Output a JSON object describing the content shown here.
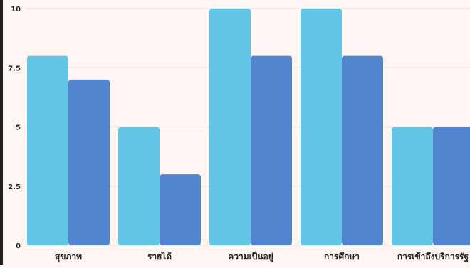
{
  "chart_data": {
    "type": "bar",
    "categories": [
      "สุขภาพ",
      "รายได้",
      "ความเป็นอยู่",
      "การศึกษา",
      "การเข้าถึงบริการรัฐ"
    ],
    "series": [
      {
        "values": [
          8,
          5,
          10,
          10,
          5
        ],
        "color": "#62c5e3"
      },
      {
        "values": [
          7,
          3,
          8,
          8,
          5
        ],
        "color": "#5285cf"
      }
    ],
    "y_ticks": [
      "0",
      "2.5",
      "5",
      "7.5",
      "10"
    ],
    "ylim": [
      0,
      10
    ],
    "grid": true,
    "legend": "none"
  }
}
